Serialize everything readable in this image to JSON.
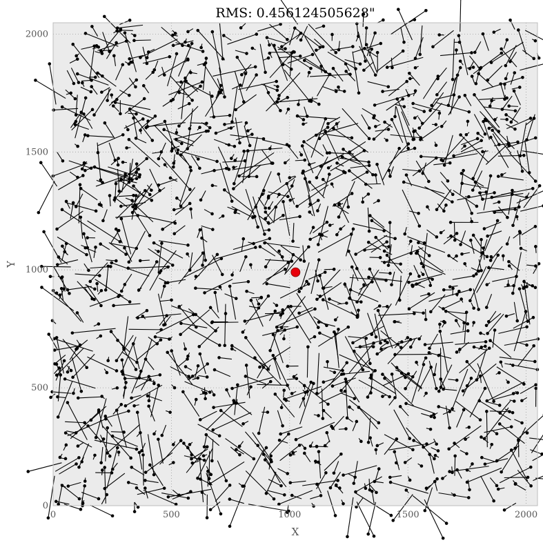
{
  "chart_data": {
    "type": "scatter",
    "title": "RMS: 0.456124505628\"",
    "xlabel": "X",
    "ylabel": "Y",
    "xlim": [
      0,
      2048
    ],
    "ylim": [
      0,
      2048
    ],
    "grid": true,
    "grid_style": "dotted",
    "background": "#ebebeb",
    "xticks": [
      0,
      500,
      1000,
      1500,
      2000
    ],
    "yticks": [
      0,
      500,
      1000,
      1500,
      2000
    ],
    "xtick_labels": [
      "0",
      "500",
      "1000",
      "1500",
      "2000"
    ],
    "ytick_labels": [
      "0",
      "500",
      "1000",
      "1500",
      "2000"
    ],
    "series": [
      {
        "marker": "dot-with-residual-vector",
        "color": "#000000",
        "vectors": [
          {
            "x": 1080,
            "y": 960,
            "dx": 70,
            "dy": 30
          },
          {
            "x": 960,
            "y": 880,
            "dx": 120,
            "dy": 60
          },
          {
            "x": 1250,
            "y": 1200,
            "dx": -40,
            "dy": 80
          },
          {
            "x": 1400,
            "y": 1180,
            "dx": -60,
            "dy": 50
          },
          {
            "x": 870,
            "y": 1230,
            "dx": 40,
            "dy": -30
          },
          {
            "x": 600,
            "y": 1350,
            "dx": -60,
            "dy": -80
          },
          {
            "x": 300,
            "y": 1600,
            "dx": 80,
            "dy": 40
          },
          {
            "x": 1700,
            "y": 400,
            "dx": -70,
            "dy": 20
          },
          {
            "x": 200,
            "y": 300,
            "dx": 40,
            "dy": -90
          },
          {
            "x": 1900,
            "y": 1100,
            "dx": -50,
            "dy": -60
          }
        ]
      },
      {
        "marker": "red-dot",
        "color": "#e8000b",
        "points": [
          {
            "x": 1025,
            "y": 990
          }
        ]
      }
    ]
  }
}
